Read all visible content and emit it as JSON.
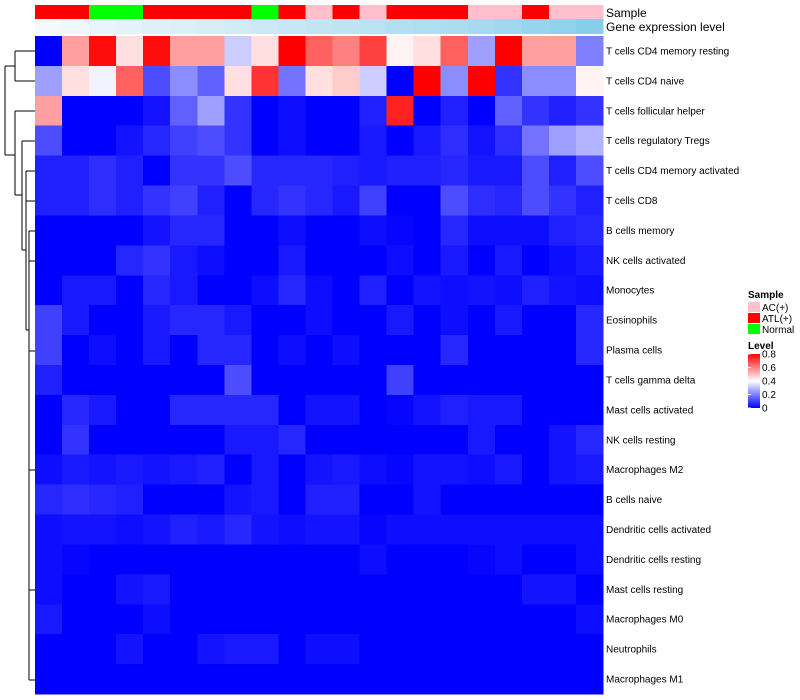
{
  "chart_data": {
    "type": "heatmap",
    "title": "",
    "annotations": {
      "sample": {
        "label": "Sample",
        "values": [
          "ATL(+)",
          "ATL(+)",
          "Normal",
          "Normal",
          "ATL(+)",
          "ATL(+)",
          "ATL(+)",
          "ATL(+)",
          "Normal",
          "ATL(+)",
          "AC(+)",
          "ATL(+)",
          "AC(+)",
          "ATL(+)",
          "ATL(+)",
          "ATL(+)",
          "AC(+)",
          "AC(+)",
          "ATL(+)",
          "AC(+)",
          "AC(+)"
        ]
      },
      "gene_expression": {
        "label": "Gene expression level",
        "values": [
          0.05,
          0.08,
          0.1,
          0.13,
          0.16,
          0.18,
          0.2,
          0.22,
          0.25,
          0.28,
          0.3,
          0.32,
          0.35,
          0.38,
          0.4,
          0.42,
          0.45,
          0.48,
          0.52,
          0.55,
          0.6
        ],
        "color_low": "#f4f9fc",
        "color_high": "#87ceeb"
      }
    },
    "rows": [
      "T cells CD4 memory resting",
      "T cells CD4 naive",
      "T cells follicular helper",
      "T cells regulatory  Tregs",
      "T cells CD4 memory activated",
      "T cells CD8",
      "B cells memory",
      "NK cells activated",
      "Monocytes",
      "Eosinophils",
      "Plasma cells",
      "T cells gamma delta",
      "Mast cells activated",
      "NK cells resting",
      "Macrophages M2",
      "B cells naive",
      "Dendritic cells activated",
      "Dendritic cells resting",
      "Mast cells resting",
      "Macrophages M0",
      "Neutrophils",
      "Macrophages M1"
    ],
    "values": [
      [
        0.0,
        0.55,
        0.78,
        0.45,
        0.78,
        0.55,
        0.55,
        0.32,
        0.45,
        0.8,
        0.65,
        0.6,
        0.7,
        0.42,
        0.45,
        0.65,
        0.25,
        0.8,
        0.55,
        0.55,
        0.2
      ],
      [
        0.25,
        0.45,
        0.38,
        0.65,
        0.12,
        0.22,
        0.15,
        0.45,
        0.72,
        0.18,
        0.45,
        0.48,
        0.32,
        0.0,
        0.8,
        0.22,
        0.8,
        0.08,
        0.22,
        0.22,
        0.42
      ],
      [
        0.55,
        0.0,
        0.0,
        0.0,
        0.03,
        0.15,
        0.25,
        0.08,
        0.0,
        0.02,
        0.0,
        0.0,
        0.05,
        0.75,
        0.0,
        0.05,
        0.0,
        0.15,
        0.08,
        0.05,
        0.08
      ],
      [
        0.12,
        0.0,
        0.0,
        0.03,
        0.06,
        0.1,
        0.12,
        0.08,
        0.0,
        0.02,
        0.0,
        0.0,
        0.04,
        0.0,
        0.04,
        0.07,
        0.03,
        0.07,
        0.18,
        0.25,
        0.28
      ],
      [
        0.05,
        0.05,
        0.07,
        0.05,
        0.0,
        0.08,
        0.08,
        0.12,
        0.06,
        0.06,
        0.06,
        0.05,
        0.04,
        0.05,
        0.05,
        0.06,
        0.04,
        0.04,
        0.12,
        0.05,
        0.12
      ],
      [
        0.05,
        0.05,
        0.07,
        0.05,
        0.08,
        0.1,
        0.05,
        0.0,
        0.06,
        0.08,
        0.06,
        0.04,
        0.1,
        0.0,
        0.0,
        0.12,
        0.07,
        0.06,
        0.12,
        0.08,
        0.05
      ],
      [
        0.0,
        0.0,
        0.0,
        0.0,
        0.03,
        0.06,
        0.06,
        0.0,
        0.0,
        0.02,
        0.0,
        0.0,
        0.02,
        0.01,
        0.0,
        0.06,
        0.02,
        0.02,
        0.02,
        0.05,
        0.06
      ],
      [
        0.0,
        0.0,
        0.0,
        0.06,
        0.08,
        0.04,
        0.02,
        0.0,
        0.0,
        0.04,
        0.0,
        0.0,
        0.0,
        0.02,
        0.0,
        0.04,
        0.0,
        0.04,
        0.0,
        0.02,
        0.04
      ],
      [
        0.0,
        0.04,
        0.04,
        0.0,
        0.06,
        0.04,
        0.0,
        0.0,
        0.02,
        0.06,
        0.02,
        0.0,
        0.05,
        0.0,
        0.03,
        0.02,
        0.03,
        0.02,
        0.05,
        0.03,
        0.02
      ],
      [
        0.1,
        0.04,
        0.0,
        0.0,
        0.04,
        0.06,
        0.06,
        0.04,
        0.0,
        0.0,
        0.02,
        0.0,
        0.0,
        0.04,
        0.0,
        0.02,
        0.0,
        0.04,
        0.0,
        0.0,
        0.06
      ],
      [
        0.1,
        0.0,
        0.02,
        0.0,
        0.04,
        0.0,
        0.06,
        0.06,
        0.0,
        0.02,
        0.0,
        0.02,
        0.0,
        0.0,
        0.0,
        0.06,
        0.0,
        0.0,
        0.0,
        0.0,
        0.06
      ],
      [
        0.05,
        0.0,
        0.0,
        0.0,
        0.0,
        0.0,
        0.0,
        0.12,
        0.0,
        0.0,
        0.0,
        0.0,
        0.0,
        0.1,
        0.0,
        0.0,
        0.0,
        0.0,
        0.0,
        0.0,
        0.0
      ],
      [
        0.0,
        0.06,
        0.04,
        0.0,
        0.0,
        0.06,
        0.06,
        0.06,
        0.06,
        0.0,
        0.03,
        0.03,
        0.0,
        0.01,
        0.03,
        0.05,
        0.04,
        0.04,
        0.0,
        0.0,
        0.0
      ],
      [
        0.0,
        0.08,
        0.0,
        0.0,
        0.0,
        0.0,
        0.0,
        0.04,
        0.04,
        0.06,
        0.0,
        0.0,
        0.0,
        0.0,
        0.0,
        0.0,
        0.04,
        0.0,
        0.0,
        0.03,
        0.06
      ],
      [
        0.02,
        0.04,
        0.03,
        0.04,
        0.03,
        0.04,
        0.05,
        0.0,
        0.04,
        0.0,
        0.03,
        0.04,
        0.02,
        0.01,
        0.03,
        0.03,
        0.02,
        0.04,
        0.0,
        0.03,
        0.04
      ],
      [
        0.06,
        0.07,
        0.06,
        0.05,
        0.0,
        0.0,
        0.0,
        0.03,
        0.04,
        0.0,
        0.05,
        0.05,
        0.0,
        0.0,
        0.03,
        0.0,
        0.0,
        0.0,
        0.0,
        0.0,
        0.0
      ],
      [
        0.02,
        0.03,
        0.03,
        0.02,
        0.03,
        0.05,
        0.04,
        0.06,
        0.03,
        0.02,
        0.03,
        0.03,
        0.01,
        0.02,
        0.02,
        0.02,
        0.02,
        0.02,
        0.02,
        0.02,
        0.02
      ],
      [
        0.02,
        0.01,
        0.0,
        0.0,
        0.0,
        0.0,
        0.0,
        0.0,
        0.0,
        0.0,
        0.0,
        0.0,
        0.02,
        0.0,
        0.0,
        0.0,
        0.01,
        0.02,
        0.0,
        0.0,
        0.02
      ],
      [
        0.02,
        0.0,
        0.0,
        0.03,
        0.04,
        0.0,
        0.0,
        0.0,
        0.0,
        0.0,
        0.0,
        0.0,
        0.0,
        0.0,
        0.0,
        0.0,
        0.0,
        0.0,
        0.03,
        0.03,
        0.0
      ],
      [
        0.04,
        0.0,
        0.0,
        0.0,
        0.02,
        0.0,
        0.0,
        0.0,
        0.0,
        0.0,
        0.0,
        0.0,
        0.0,
        0.0,
        0.0,
        0.0,
        0.0,
        0.0,
        0.0,
        0.0,
        0.02
      ],
      [
        0.0,
        0.0,
        0.0,
        0.03,
        0.0,
        0.0,
        0.03,
        0.04,
        0.04,
        0.0,
        0.02,
        0.02,
        0.0,
        0.0,
        0.0,
        0.0,
        0.0,
        0.0,
        0.0,
        0.0,
        0.0
      ],
      [
        0.0,
        0.0,
        0.0,
        0.0,
        0.0,
        0.0,
        0.0,
        0.0,
        0.0,
        0.0,
        0.0,
        0.0,
        0.0,
        0.0,
        0.0,
        0.0,
        0.0,
        0.0,
        0.0,
        0.0,
        0.0
      ]
    ],
    "color_scale": {
      "stops": [
        {
          "value": 0.0,
          "color": "#0000ff"
        },
        {
          "value": 0.4,
          "color": "#ffffff"
        },
        {
          "value": 0.8,
          "color": "#ff0000"
        }
      ]
    },
    "legend": {
      "sample_title": "Sample",
      "sample_entries": [
        {
          "label": "AC(+)",
          "color": "#ffc0cb"
        },
        {
          "label": "ATL(+)",
          "color": "#ff0000"
        },
        {
          "label": "Normal",
          "color": "#00ff00"
        }
      ],
      "level_title": "Level",
      "level_ticks": [
        "0.8",
        "0.6",
        "0.4",
        "0.2",
        "0"
      ],
      "placement": "right"
    }
  }
}
